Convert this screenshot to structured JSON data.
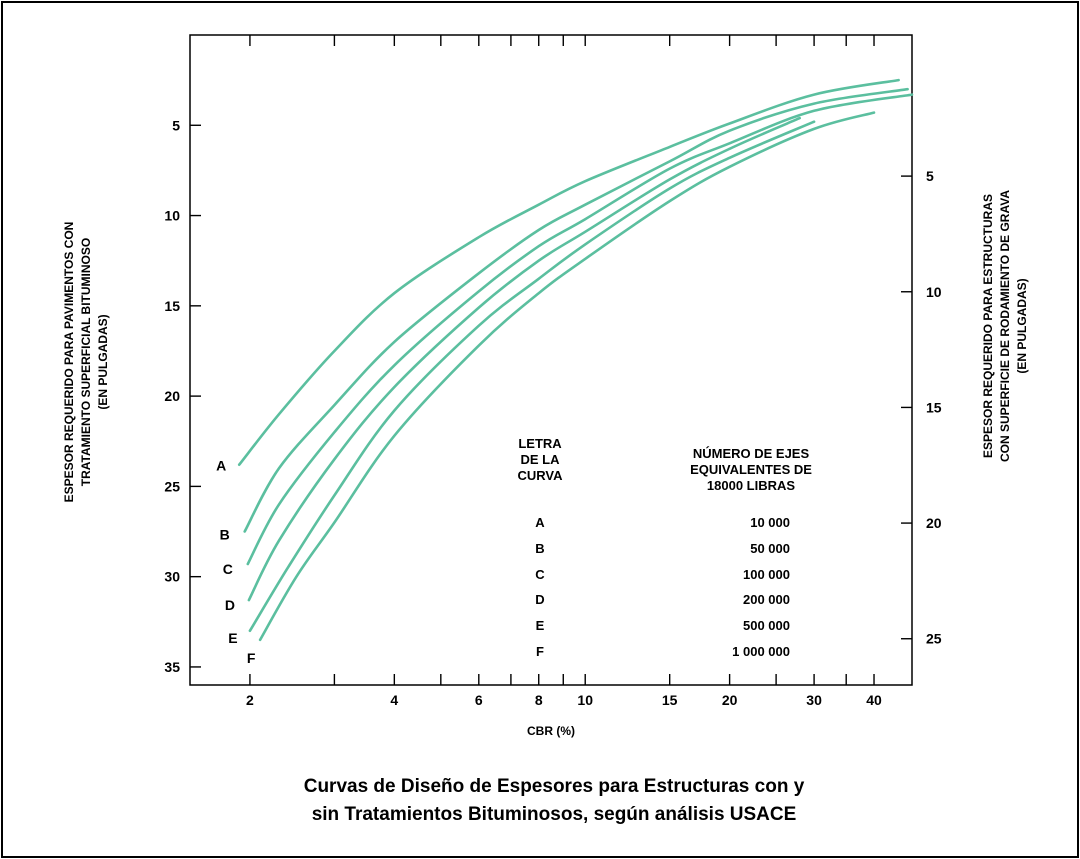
{
  "chart_data": {
    "type": "line",
    "title": "Curvas de Diseño de Espesores para Estructuras con y sin Tratamientos Bituminosos, según análisis USACE",
    "title_lines": [
      "Curvas de Diseño de Espesores para Estructuras con y",
      "sin Tratamientos Bituminosos, según análisis USACE"
    ],
    "xlabel": "CBR (%)",
    "x_scale": "log",
    "xlim": [
      1.5,
      48
    ],
    "x_ticks": [
      2,
      3,
      4,
      5,
      6,
      7,
      8,
      9,
      10,
      15,
      20,
      25,
      30,
      35,
      40
    ],
    "x_tick_labels": [
      {
        "value": 2,
        "label": "2"
      },
      {
        "value": 4,
        "label": "4"
      },
      {
        "value": 6,
        "label": "6"
      },
      {
        "value": 8,
        "label": "8"
      },
      {
        "value": 10,
        "label": "10"
      },
      {
        "value": 15,
        "label": "15"
      },
      {
        "value": 20,
        "label": "20"
      },
      {
        "value": 30,
        "label": "30"
      },
      {
        "value": 40,
        "label": "40"
      }
    ],
    "ylabel_left_lines": [
      "ESPESOR REQUERIDO PARA PAVIMENTOS CON",
      "TRATAMIENTO SUPERFICIAL BITUMINOSO",
      "(EN PULGADAS)"
    ],
    "ylim_left": [
      0,
      36
    ],
    "y_left_ticks": [
      5,
      10,
      15,
      20,
      25,
      30,
      35
    ],
    "ylabel_right_lines": [
      "ESPESOR REQUERIDO PARA ESTRUCTURAS",
      "CON SUPERFICIE DE RODAMIENTO DE GRAVA",
      "(EN PULGADAS)"
    ],
    "ylim_right": [
      -1.1,
      27
    ],
    "y_right_ticks": [
      5,
      10,
      15,
      20,
      25
    ],
    "y_inverted": true,
    "grid": false,
    "line_color": "#5bbf9f",
    "series": [
      {
        "name": "A",
        "x": [
          1.9,
          2.3,
          3,
          4,
          6,
          8,
          10,
          15,
          20,
          30,
          45
        ],
        "y": [
          23.8,
          21,
          17.5,
          14.3,
          11.2,
          9.4,
          8.1,
          6.2,
          4.9,
          3.3,
          2.5
        ]
      },
      {
        "name": "B",
        "x": [
          1.95,
          2.3,
          3,
          4,
          6,
          8,
          10,
          15,
          20,
          30,
          47
        ],
        "y": [
          27.5,
          24,
          20.5,
          17,
          13.2,
          10.8,
          9.4,
          7,
          5.3,
          3.8,
          3
        ]
      },
      {
        "name": "C",
        "x": [
          1.98,
          2.3,
          3,
          4,
          6,
          8,
          10,
          15,
          20,
          30,
          48
        ],
        "y": [
          29.3,
          26,
          22,
          18.3,
          14.2,
          11.7,
          10.2,
          7.4,
          6,
          4.2,
          3.3
        ]
      },
      {
        "name": "D",
        "x": [
          1.99,
          2.3,
          3,
          4,
          6,
          8,
          10,
          15,
          20,
          28
        ],
        "y": [
          31.3,
          28,
          23.5,
          19.5,
          15.1,
          12.5,
          10.9,
          8,
          6.3,
          4.6
        ]
      },
      {
        "name": "E",
        "x": [
          2,
          2.4,
          3,
          4,
          6,
          8,
          10,
          15,
          20,
          30
        ],
        "y": [
          33,
          29.5,
          25.5,
          20.8,
          16.1,
          13.5,
          11.6,
          8.5,
          6.8,
          4.8
        ]
      },
      {
        "name": "F",
        "x": [
          2.1,
          2.5,
          3,
          4,
          6,
          8,
          10,
          15,
          20,
          30,
          40
        ],
        "y": [
          33.5,
          30,
          27,
          22.2,
          17.2,
          14.3,
          12.4,
          9.2,
          7.3,
          5.2,
          4.3
        ]
      }
    ],
    "curve_letters": [
      "A",
      "B",
      "C",
      "D",
      "E",
      "F"
    ],
    "table": {
      "header_left": [
        "LETRA",
        "DE LA",
        "CURVA"
      ],
      "header_right": [
        "NÚMERO DE EJES",
        "EQUIVALENTES DE",
        "18000 LIBRAS"
      ],
      "rows": [
        {
          "letter": "A",
          "value": "10 000"
        },
        {
          "letter": "B",
          "value": "50 000"
        },
        {
          "letter": "C",
          "value": "100 000"
        },
        {
          "letter": "D",
          "value": "200 000"
        },
        {
          "letter": "E",
          "value": "500 000"
        },
        {
          "letter": "F",
          "value": "1 000 000"
        }
      ]
    }
  }
}
